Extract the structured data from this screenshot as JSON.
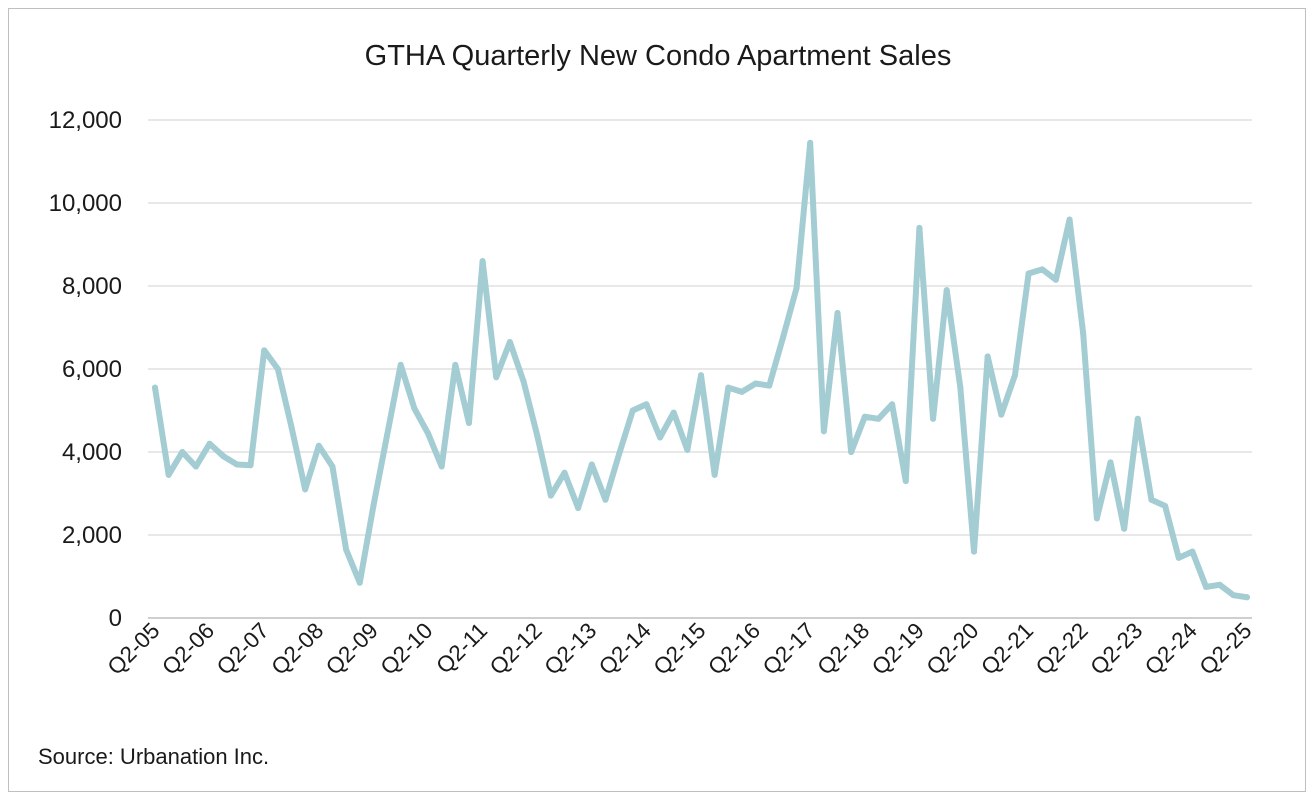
{
  "chart_data": {
    "type": "line",
    "title": "GTHA Quarterly New Condo Apartment Sales",
    "source": "Source: Urbanation Inc.",
    "xlabel": "",
    "ylabel": "",
    "ylim": [
      0,
      12000
    ],
    "y_ticks": [
      0,
      2000,
      4000,
      6000,
      8000,
      10000,
      12000
    ],
    "y_tick_labels": [
      "0",
      "2,000",
      "4,000",
      "6,000",
      "8,000",
      "10,000",
      "12,000"
    ],
    "x_tick_labels": [
      "Q2-05",
      "Q2-06",
      "Q2-07",
      "Q2-08",
      "Q2-09",
      "Q2-10",
      "Q2-11",
      "Q2-12",
      "Q2-13",
      "Q2-14",
      "Q2-15",
      "Q2-16",
      "Q2-17",
      "Q2-18",
      "Q2-19",
      "Q2-20",
      "Q2-21",
      "Q2-22",
      "Q2-23",
      "Q2-24",
      "Q2-25"
    ],
    "grid": true,
    "legend": "none",
    "colors": {
      "line": "#a3cdd3",
      "grid": "#d9d9d9",
      "axis": "#bfbfbf"
    },
    "series": [
      {
        "values": [
          5550,
          3450,
          4000,
          3650,
          4200,
          3900,
          3700,
          3680,
          6450,
          6000,
          4600,
          3100,
          4150,
          3650,
          1650,
          850,
          2700,
          4400,
          6100,
          5050,
          4450,
          3650,
          6100,
          4700,
          8600,
          5800,
          6650,
          5700,
          4400,
          2950,
          3500,
          2650,
          3700,
          2850,
          3950,
          5000,
          5150,
          4350,
          4950,
          4050,
          5850,
          3450,
          5550,
          5450,
          5650,
          5600,
          6750,
          7950,
          11450,
          4500,
          7350,
          4000,
          4850,
          4800,
          5150,
          3300,
          9400,
          4800,
          7900,
          5550,
          1600,
          6300,
          4900,
          5850,
          8300,
          8400,
          8150,
          9600,
          6850,
          2400,
          3750,
          2150,
          4800,
          2850,
          2700,
          1450,
          1600,
          750,
          800,
          550,
          500
        ]
      }
    ]
  }
}
